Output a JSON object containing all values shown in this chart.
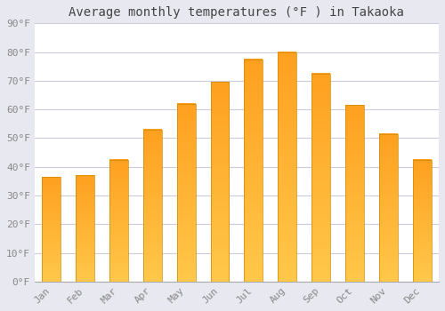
{
  "title": "Average monthly temperatures (°F ) in Takaoka",
  "months": [
    "Jan",
    "Feb",
    "Mar",
    "Apr",
    "May",
    "Jun",
    "Jul",
    "Aug",
    "Sep",
    "Oct",
    "Nov",
    "Dec"
  ],
  "values": [
    36.5,
    37.0,
    42.5,
    53.0,
    62.0,
    69.5,
    77.5,
    80.0,
    72.5,
    61.5,
    51.5,
    42.5
  ],
  "bar_color_bottom": "#FFC84A",
  "bar_color_top": "#FFA020",
  "background_color": "#e8e8f0",
  "plot_bg_color": "#ffffff",
  "grid_color": "#ccccdd",
  "ylim": [
    0,
    90
  ],
  "yticks": [
    0,
    10,
    20,
    30,
    40,
    50,
    60,
    70,
    80,
    90
  ],
  "title_fontsize": 10,
  "tick_fontsize": 8,
  "title_color": "#444444",
  "tick_color": "#888888",
  "bar_width": 0.55
}
